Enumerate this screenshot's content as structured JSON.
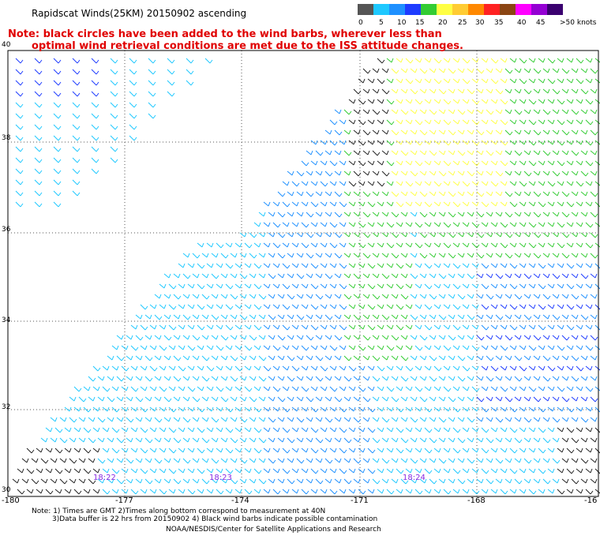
{
  "header": {
    "title": "Rapidscat Winds(25KM) 20150902 ascending",
    "note_line1": "Note: black circles have been added to the wind barbs, wherever less than",
    "note_line2": "optimal wind retrieval conditions are met due to the ISS attitude changes."
  },
  "legend": {
    "colors": [
      "#555555",
      "#1ec8ff",
      "#1e90ff",
      "#1e3cff",
      "#33cc33",
      "#ffff44",
      "#ffcc33",
      "#ff8800",
      "#ff2222",
      "#8b4513",
      "#ff00ff",
      "#9400d3",
      "#3a006f"
    ],
    "labels": [
      "0",
      "5",
      "10",
      "15",
      "20",
      "25",
      "30",
      "35",
      "40",
      "45",
      ">50 knots"
    ]
  },
  "axes": {
    "lat_labels": [
      "40",
      "38",
      "36",
      "34",
      "32",
      "30"
    ],
    "lon_labels": [
      "-180",
      "-177",
      "-174",
      "-171",
      "-168",
      "-16"
    ]
  },
  "times": [
    "18:22",
    "18:23",
    "18:24"
  ],
  "footer": {
    "line1": "Note: 1) Times are GMT 2)Times along bottom correspond to measurement at 40N",
    "line2": "3)Data buffer is 22 hrs from 20150902 4) Black wind barbs indicate possible contamination",
    "line3": "NOAA/NESDIS/Center for Satellite Applications and Research"
  }
}
